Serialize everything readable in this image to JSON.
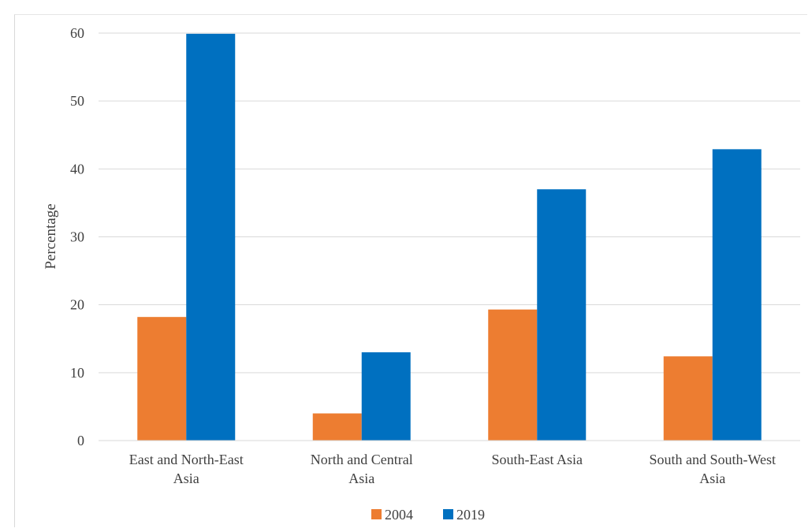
{
  "chart_data": {
    "type": "bar",
    "title": "",
    "xlabel": "",
    "ylabel": "Percentage",
    "ylim": [
      0,
      60
    ],
    "yticks": [
      0,
      10,
      20,
      30,
      40,
      50,
      60
    ],
    "grid": true,
    "legend_position": "bottom-center",
    "categories": [
      [
        "East and North-East",
        "Asia"
      ],
      [
        "North and Central",
        "Asia"
      ],
      [
        "South-East Asia"
      ],
      [
        "South and South-West",
        "Asia"
      ]
    ],
    "series": [
      {
        "name": "2004",
        "color": "#ED7D31",
        "values": [
          18.2,
          4.0,
          19.3,
          12.4
        ]
      },
      {
        "name": "2019",
        "color": "#0070C0",
        "values": [
          59.9,
          13.0,
          37.0,
          42.9
        ]
      }
    ]
  }
}
